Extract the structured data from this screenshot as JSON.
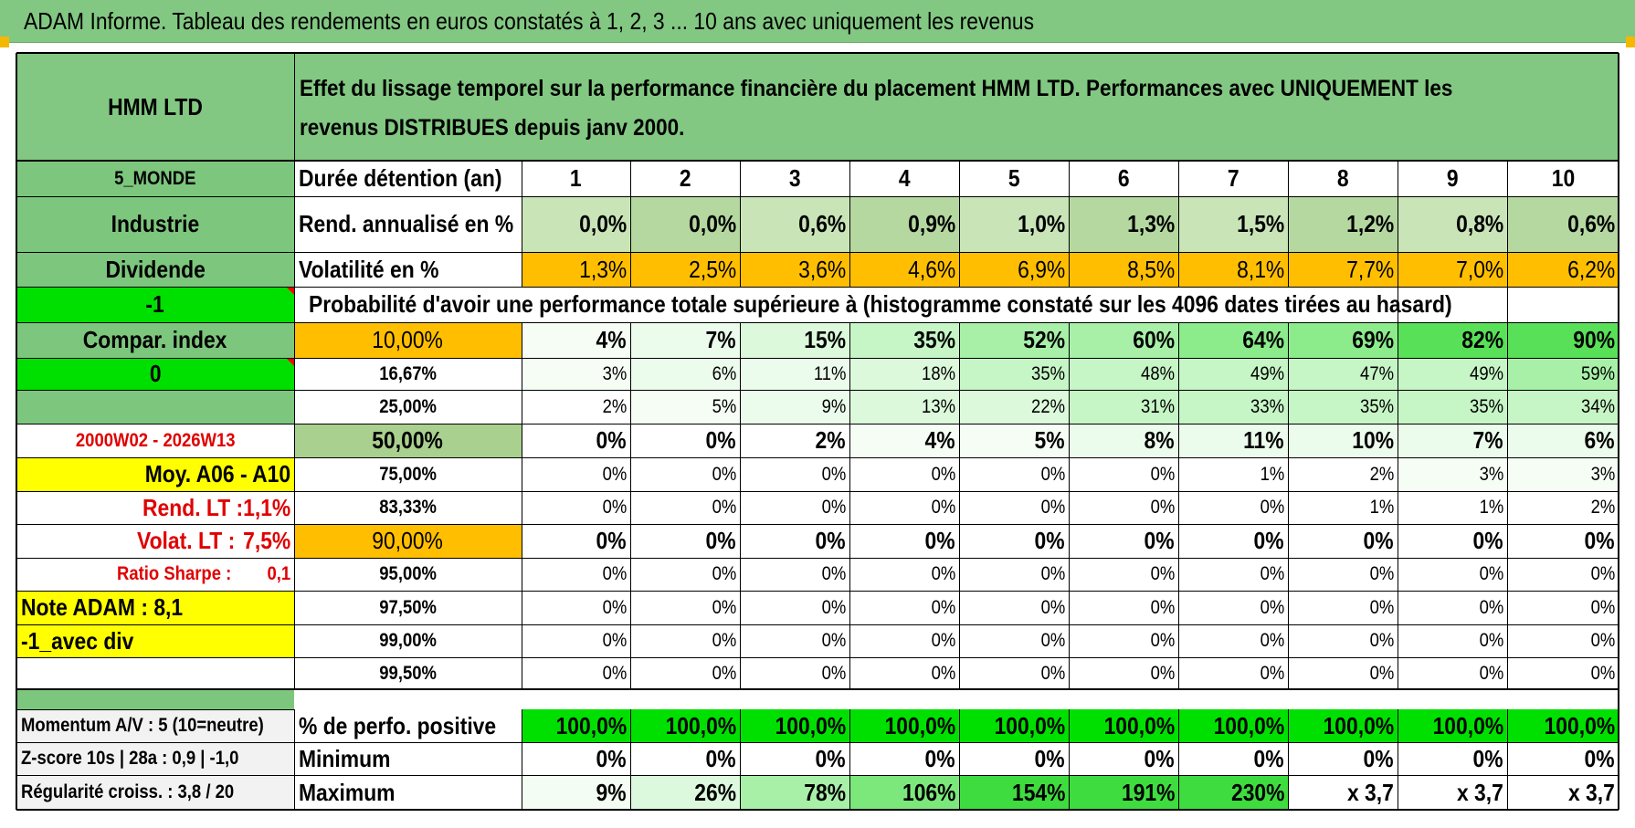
{
  "title": "ADAM Informe. Tableau des rendements en euros constatés à 1, 2, 3 ... 10 ans avec uniquement les revenus",
  "header": {
    "fund": "HMM LTD",
    "description": "Effet du lissage temporel sur la performance financière du placement HMM LTD. Performances avec UNIQUEMENT les revenus DISTRIBUES depuis janv 2000."
  },
  "side": {
    "zone": "5_MONDE",
    "sector": "Industrie",
    "type": "Dividende",
    "code_minus1": "-1",
    "compar_index": "Compar. index",
    "code_zero": "0",
    "period": "2000W02 - 2026W13",
    "moy": "Moy. A06 - A10",
    "rend_lt_label": "Rend. LT :",
    "rend_lt_value": "1,1%",
    "volat_lt_label": "Volat. LT :",
    "volat_lt_value": "7,5%",
    "sharpe_label": "Ratio Sharpe :",
    "sharpe_value": "0,1",
    "note": "Note ADAM : 8,1",
    "avec_div": "-1_avec div",
    "momentum": "Momentum A/V : 5 (10=neutre)",
    "zscore": "Z-score 10s | 28a : 0,9 | -1,0",
    "regularite": "Régularité croiss. : 3,8 / 20"
  },
  "labels": {
    "duration": "Durée détention (an)",
    "rend": "Rend. annualisé en %",
    "vol": "Volatilité en %",
    "prob_header": "Probabilité d'avoir une performance totale supérieure à (histogramme constaté sur les 4096 dates tirées au hasard)",
    "pct_pos": "% de perfo. positive",
    "min": "Minimum",
    "max": "Maximum"
  },
  "years": [
    "1",
    "2",
    "3",
    "4",
    "5",
    "6",
    "7",
    "8",
    "9",
    "10"
  ],
  "rend": [
    "0,0%",
    "0,0%",
    "0,6%",
    "0,9%",
    "1,0%",
    "1,3%",
    "1,5%",
    "1,2%",
    "0,8%",
    "0,6%"
  ],
  "vol": [
    "1,3%",
    "2,5%",
    "3,6%",
    "4,6%",
    "6,9%",
    "8,5%",
    "8,1%",
    "7,7%",
    "7,0%",
    "6,2%"
  ],
  "prob_rows": [
    {
      "threshold": "10,00%",
      "values": [
        "4%",
        "7%",
        "15%",
        "35%",
        "52%",
        "60%",
        "64%",
        "69%",
        "82%",
        "90%"
      ]
    },
    {
      "threshold": "16,67%",
      "values": [
        "3%",
        "6%",
        "11%",
        "18%",
        "35%",
        "48%",
        "49%",
        "47%",
        "49%",
        "59%"
      ]
    },
    {
      "threshold": "25,00%",
      "values": [
        "2%",
        "5%",
        "9%",
        "13%",
        "22%",
        "31%",
        "33%",
        "35%",
        "35%",
        "34%"
      ]
    },
    {
      "threshold": "50,00%",
      "values": [
        "0%",
        "0%",
        "2%",
        "4%",
        "5%",
        "8%",
        "11%",
        "10%",
        "7%",
        "6%"
      ]
    },
    {
      "threshold": "75,00%",
      "values": [
        "0%",
        "0%",
        "0%",
        "0%",
        "0%",
        "0%",
        "1%",
        "2%",
        "3%",
        "3%"
      ]
    },
    {
      "threshold": "83,33%",
      "values": [
        "0%",
        "0%",
        "0%",
        "0%",
        "0%",
        "0%",
        "0%",
        "1%",
        "1%",
        "2%"
      ]
    },
    {
      "threshold": "90,00%",
      "values": [
        "0%",
        "0%",
        "0%",
        "0%",
        "0%",
        "0%",
        "0%",
        "0%",
        "0%",
        "0%"
      ]
    },
    {
      "threshold": "95,00%",
      "values": [
        "0%",
        "0%",
        "0%",
        "0%",
        "0%",
        "0%",
        "0%",
        "0%",
        "0%",
        "0%"
      ]
    },
    {
      "threshold": "97,50%",
      "values": [
        "0%",
        "0%",
        "0%",
        "0%",
        "0%",
        "0%",
        "0%",
        "0%",
        "0%",
        "0%"
      ]
    },
    {
      "threshold": "99,00%",
      "values": [
        "0%",
        "0%",
        "0%",
        "0%",
        "0%",
        "0%",
        "0%",
        "0%",
        "0%",
        "0%"
      ]
    },
    {
      "threshold": "99,50%",
      "values": [
        "0%",
        "0%",
        "0%",
        "0%",
        "0%",
        "0%",
        "0%",
        "0%",
        "0%",
        "0%"
      ]
    }
  ],
  "pct_pos": [
    "100,0%",
    "100,0%",
    "100,0%",
    "100,0%",
    "100,0%",
    "100,0%",
    "100,0%",
    "100,0%",
    "100,0%",
    "100,0%"
  ],
  "min": [
    "0%",
    "0%",
    "0%",
    "0%",
    "0%",
    "0%",
    "0%",
    "0%",
    "0%",
    "0%"
  ],
  "max": [
    "9%",
    "26%",
    "78%",
    "106%",
    "154%",
    "191%",
    "230%",
    "x 3,7",
    "x 3,7",
    "x 3,7"
  ],
  "colors": {
    "header_green": "#82c882",
    "side_green": "#7dc67d",
    "bright_green": "#00e000",
    "orange": "#ffbf00",
    "yellow": "#ffff00",
    "rend_light": "#c9e4b7",
    "rend_dark": "#b4d8a0",
    "red_text": "#e00000"
  }
}
